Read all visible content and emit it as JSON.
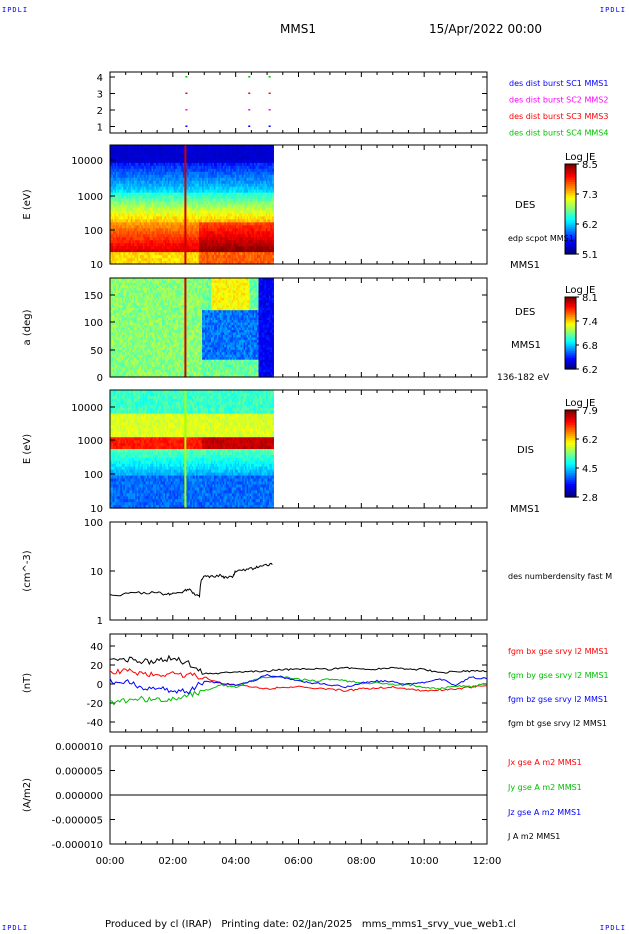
{
  "corners": {
    "tl": "IPDLI",
    "tr": "IPDLI",
    "bl": "IPDLI",
    "br": "IPDLI"
  },
  "header": {
    "spacecraft": "MMS1",
    "date": "15/Apr/2022 00:00"
  },
  "footer": {
    "text": "Produced by cl (IRAP)   Printing date: 02/Jan/2025   mms_mms1_srvy_vue_web1.cl"
  },
  "chart_data": [
    {
      "id": "burst",
      "type": "scatter",
      "yticks": [
        "4",
        "3",
        "2",
        "1"
      ],
      "labels": [
        {
          "text": "des dist burst SC1 MMS1",
          "color": "#0000ff"
        },
        {
          "text": "des dist burst SC2 MMS2",
          "color": "#ff00ff"
        },
        {
          "text": "des dist burst SC3 MMS3",
          "color": "#ff0000"
        },
        {
          "text": "des dist burst SC4 MMS4",
          "color": "#00c000"
        }
      ],
      "series": [
        {
          "level": 4,
          "times": [
            2.4,
            4.4,
            5.05
          ]
        },
        {
          "level": 3,
          "times": [
            2.4,
            4.4,
            5.05
          ]
        },
        {
          "level": 2,
          "times": [
            2.4,
            4.4,
            5.05
          ]
        },
        {
          "level": 1,
          "times": [
            2.4,
            4.4,
            5.05
          ]
        }
      ]
    },
    {
      "id": "des_e",
      "type": "heatmap",
      "ylabel": "E (eV)",
      "yscale": "log",
      "yticks": [
        "10000",
        "1000",
        "100",
        "10"
      ],
      "side_labels": {
        "instrument": "DES",
        "annot": "edp scpot MMS1",
        "spacecraft": "MMS1"
      },
      "colorbar": {
        "title": "Log JE",
        "ticks": [
          "8.5",
          "7.3",
          "6.2",
          "5.1"
        ]
      },
      "data_end_hour": 5.2
    },
    {
      "id": "des_pa",
      "type": "heatmap",
      "ylabel": "a (deg)",
      "yticks": [
        "150",
        "100",
        "50",
        "0"
      ],
      "side_labels": {
        "instrument": "DES",
        "spacecraft": "MMS1",
        "range": "136-182 eV"
      },
      "colorbar": {
        "title": "Log JE",
        "ticks": [
          "8.1",
          "7.4",
          "6.8",
          "6.2"
        ]
      },
      "data_end_hour": 5.2
    },
    {
      "id": "dis_e",
      "type": "heatmap",
      "ylabel": "E (eV)",
      "yscale": "log",
      "yticks": [
        "10000",
        "1000",
        "100",
        "10"
      ],
      "side_labels": {
        "instrument": "DIS",
        "spacecraft": "MMS1"
      },
      "colorbar": {
        "title": "Log JE",
        "ticks": [
          "7.9",
          "6.2",
          "4.5",
          "2.8"
        ]
      },
      "data_end_hour": 5.2
    },
    {
      "id": "density",
      "type": "line",
      "ylabel": "(cm^-3)",
      "yscale": "log",
      "ylim": [
        1,
        100
      ],
      "yticks": [
        "100",
        "10",
        "1"
      ],
      "series": [
        {
          "name": "des numberdensity fast M",
          "color": "#000000",
          "x": [
            0,
            0.5,
            1,
            1.5,
            1.8,
            2.0,
            2.3,
            2.5,
            2.7,
            2.85,
            2.9,
            3.0,
            3.2,
            3.5,
            3.7,
            3.9,
            4.0,
            4.3,
            4.6,
            4.8,
            5.0,
            5.2
          ],
          "y": [
            3.2,
            3.4,
            3.6,
            3.6,
            3.3,
            3.5,
            3.8,
            4.3,
            3.4,
            3.0,
            6.2,
            7.8,
            7.5,
            8.1,
            7.2,
            7.6,
            9.8,
            10.5,
            11.5,
            12.8,
            13.2,
            14.0
          ]
        }
      ]
    },
    {
      "id": "fgm",
      "type": "line",
      "ylabel": "(nT)",
      "ylim": [
        -50,
        50
      ],
      "yticks": [
        "40",
        "20",
        "0",
        "-20",
        "-40"
      ],
      "series": [
        {
          "name": "fgm bx gse srvy l2 MMS1",
          "color": "#ff0000",
          "x": [
            0,
            0.5,
            1,
            1.5,
            2,
            2.5,
            3,
            3.5,
            4,
            4.5,
            5,
            5.5,
            6,
            6.5,
            7,
            7.5,
            8,
            8.5,
            9,
            9.5,
            10,
            10.5,
            11,
            11.5,
            12
          ],
          "y": [
            12,
            12,
            10,
            8,
            10,
            8,
            6,
            0,
            -2,
            -4,
            -6,
            -4,
            -4,
            -6,
            -6,
            -8,
            -6,
            -5,
            -4,
            -6,
            -8,
            -7,
            -6,
            -4,
            -3
          ]
        },
        {
          "name": "fgm by gse srvy l2 MMS1",
          "color": "#00c000",
          "x": [
            0,
            0.5,
            1,
            1.5,
            2,
            2.5,
            3,
            3.5,
            4,
            4.5,
            5,
            5.5,
            6,
            6.5,
            7,
            7.5,
            8,
            8.5,
            9,
            9.5,
            10,
            10.5,
            11,
            11.5,
            12
          ],
          "y": [
            -20,
            -18,
            -16,
            -18,
            -16,
            -12,
            -8,
            -2,
            -4,
            2,
            6,
            6,
            4,
            2,
            4,
            2,
            0,
            0,
            -2,
            -2,
            -4,
            -6,
            -3,
            -4,
            0
          ]
        },
        {
          "name": "fgm bz gse srvy l2 MMS1",
          "color": "#0000ff",
          "x": [
            0,
            0.5,
            1,
            1.5,
            2,
            2.5,
            3,
            3.5,
            4,
            4.5,
            5,
            5.5,
            6,
            6.5,
            7,
            7.5,
            8,
            8.5,
            9,
            9.5,
            10,
            10.5,
            11,
            11.5,
            12
          ],
          "y": [
            2,
            1,
            -4,
            -6,
            -8,
            -8,
            2,
            0,
            -2,
            2,
            8,
            6,
            2,
            0,
            -2,
            -4,
            0,
            2,
            1,
            -1,
            0,
            4,
            -2,
            6,
            4
          ]
        },
        {
          "name": "fgm bt gse srvy l2 MMS1",
          "color": "#000000",
          "x": [
            0,
            0.5,
            1,
            1.5,
            2,
            2.5,
            3,
            3.5,
            4,
            4.5,
            5,
            5.5,
            6,
            6.5,
            7,
            7.5,
            8,
            8.5,
            9,
            9.5,
            10,
            10.5,
            11,
            11.5,
            12
          ],
          "y": [
            24,
            24,
            22,
            22,
            26,
            20,
            10,
            10,
            12,
            12,
            12,
            14,
            14,
            14,
            14,
            16,
            14,
            14,
            16,
            14,
            14,
            10,
            12,
            12,
            12
          ]
        }
      ]
    },
    {
      "id": "current",
      "type": "line",
      "ylabel": "(A/m2)",
      "ylim": [
        -1e-05,
        1e-05
      ],
      "yticks": [
        "0.000010",
        "0.000005",
        "0.000000",
        "-0.000005",
        "-0.000010"
      ],
      "series": [
        {
          "name": "Jx gse A m2 MMS1",
          "color": "#ff0000",
          "x": [
            0,
            12
          ],
          "y": [
            0,
            0
          ]
        },
        {
          "name": "Jy gse A m2 MMS1",
          "color": "#00c000",
          "x": [
            0,
            12
          ],
          "y": [
            0,
            0
          ]
        },
        {
          "name": "Jz gse A m2 MMS1",
          "color": "#0000ff",
          "x": [
            0,
            12
          ],
          "y": [
            0,
            0
          ]
        },
        {
          "name": "J A m2 MMS1",
          "color": "#000000",
          "x": [
            0,
            12
          ],
          "y": [
            0,
            0
          ]
        }
      ]
    }
  ],
  "xaxis": {
    "ticks": [
      "00:00",
      "02:00",
      "04:00",
      "06:00",
      "08:00",
      "10:00",
      "12:00"
    ],
    "range_hours": [
      0,
      12
    ]
  }
}
